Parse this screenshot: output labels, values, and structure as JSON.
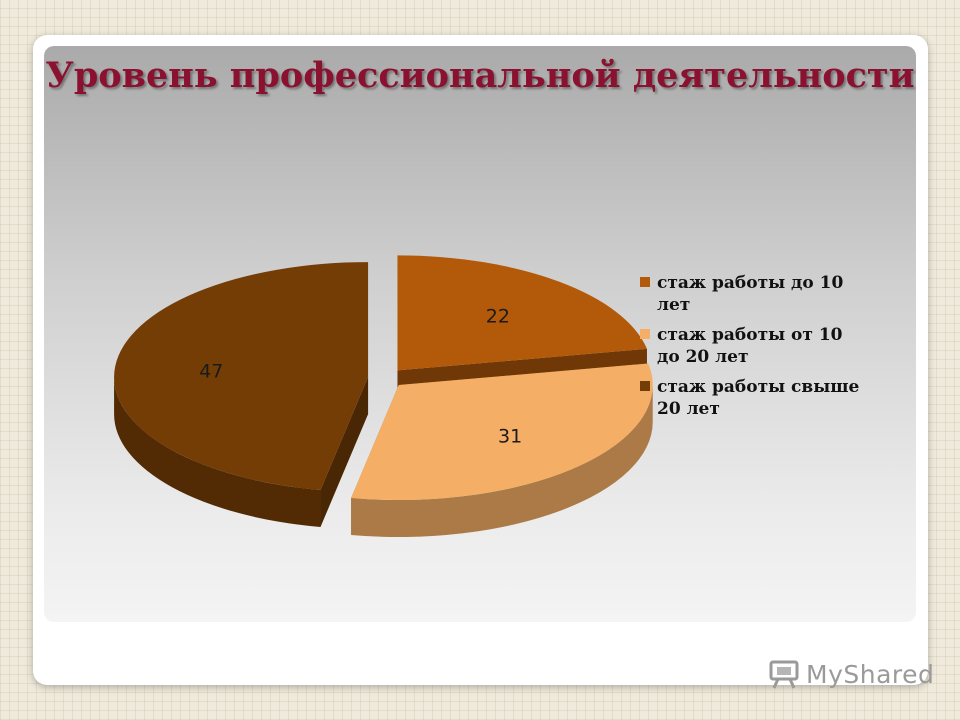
{
  "chart_data": {
    "type": "pie",
    "title": "Уровень профессиональной деятельности",
    "categories": [
      "стаж работы до 10 лет",
      "стаж работы от 10 до 20 лет",
      "стаж работы свыше 20 лет"
    ],
    "values": [
      22,
      31,
      47
    ],
    "data_labels": [
      "22",
      "31",
      "47"
    ],
    "colors": [
      "#b35a0a",
      "#f5ae66",
      "#753d06"
    ],
    "style": "3d-exploded",
    "legend_position": "right",
    "legend": [
      {
        "line1": "стаж работы до 10",
        "line2": "лет"
      },
      {
        "line1": "стаж работы от 10",
        "line2": "до 20 лет"
      },
      {
        "line1": "стаж работы свыше",
        "line2": "20 лет"
      }
    ]
  },
  "logo": {
    "text": "MyShared",
    "icon": "presentation-board-icon"
  }
}
